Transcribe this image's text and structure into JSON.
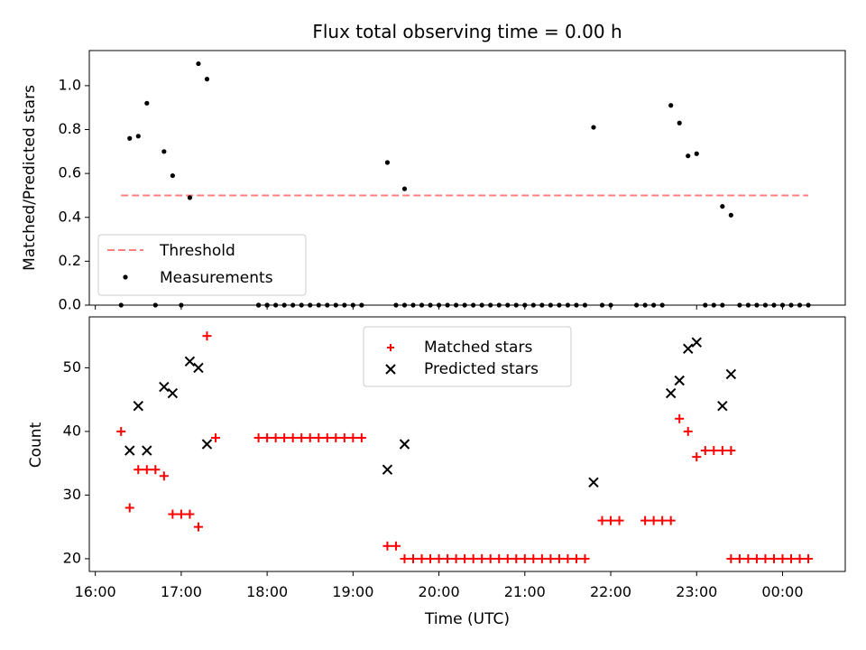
{
  "chart_data": [
    {
      "type": "scatter",
      "title": "Flux total observing time = 0.00 h",
      "ylabel": "Matched/Predicted stars",
      "ylim": [
        0,
        1.16
      ],
      "yticks": [
        "0.0",
        "0.2",
        "0.4",
        "0.6",
        "0.8",
        "1.0"
      ],
      "xlim_hours": [
        15.93,
        24.73
      ],
      "threshold": {
        "name": "Threshold",
        "value": 0.5,
        "x_start": "16:18",
        "x_end": "00:18",
        "color": "#ff7f7f"
      },
      "series": [
        {
          "name": "Measurements",
          "color": "#000000",
          "points": [
            [
              "16:18",
              0.0
            ],
            [
              "16:24",
              0.76
            ],
            [
              "16:30",
              0.77
            ],
            [
              "16:36",
              0.92
            ],
            [
              "16:42",
              0.0
            ],
            [
              "16:48",
              0.7
            ],
            [
              "16:54",
              0.59
            ],
            [
              "17:00",
              0.0
            ],
            [
              "17:06",
              0.49
            ],
            [
              "17:12",
              1.1
            ],
            [
              "17:18",
              1.03
            ],
            [
              "17:54",
              0.0
            ],
            [
              "18:00",
              0.0
            ],
            [
              "19:24",
              0.65
            ],
            [
              "19:36",
              0.53
            ],
            [
              "21:48",
              0.81
            ],
            [
              "22:42",
              0.91
            ],
            [
              "22:48",
              0.83
            ],
            [
              "22:54",
              0.68
            ],
            [
              "23:00",
              0.69
            ],
            [
              "23:18",
              0.45
            ],
            [
              "23:24",
              0.41
            ]
          ],
          "zero_runs": [
            [
              "17:54",
              "19:06"
            ],
            [
              "19:30",
              "21:42"
            ],
            [
              "21:54",
              "22:00"
            ],
            [
              "22:18",
              "22:36"
            ],
            [
              "23:06",
              "23:18"
            ],
            [
              "23:30",
              "00:18"
            ]
          ]
        }
      ],
      "legend": {
        "placement": "lower-left",
        "entries": [
          "Threshold",
          "Measurements"
        ]
      }
    },
    {
      "type": "scatter",
      "xlabel": "Time (UTC)",
      "ylabel": "Count",
      "ylim": [
        18,
        58
      ],
      "yticks": [
        "20",
        "30",
        "40",
        "50"
      ],
      "xticks": [
        "16:00",
        "17:00",
        "18:00",
        "19:00",
        "20:00",
        "21:00",
        "22:00",
        "23:00",
        "00:00"
      ],
      "series": [
        {
          "name": "Matched stars",
          "marker": "+",
          "color": "#ff0000",
          "points": [
            [
              "16:18",
              40
            ],
            [
              "16:24",
              28
            ],
            [
              "16:30",
              34
            ],
            [
              "16:36",
              34
            ],
            [
              "16:42",
              34
            ],
            [
              "16:48",
              33
            ],
            [
              "16:54",
              27
            ],
            [
              "17:00",
              27
            ],
            [
              "17:06",
              27
            ],
            [
              "17:12",
              25
            ],
            [
              "17:18",
              55
            ],
            [
              "17:24",
              39
            ],
            [
              "19:24",
              22
            ],
            [
              "19:30",
              22
            ],
            [
              "21:54",
              26
            ],
            [
              "22:00",
              26
            ],
            [
              "22:06",
              26
            ],
            [
              "22:24",
              26
            ],
            [
              "22:30",
              26
            ],
            [
              "22:36",
              26
            ],
            [
              "22:42",
              26
            ],
            [
              "22:48",
              42
            ],
            [
              "22:54",
              40
            ],
            [
              "23:00",
              36
            ],
            [
              "23:06",
              37
            ],
            [
              "23:12",
              37
            ],
            [
              "23:18",
              37
            ],
            [
              "23:24",
              37
            ]
          ],
          "runs": [
            {
              "from": "17:54",
              "to": "19:06",
              "value": 39
            },
            {
              "from": "19:36",
              "to": "21:42",
              "value": 20
            },
            {
              "from": "23:24",
              "to": "00:18",
              "value": 20
            }
          ]
        },
        {
          "name": "Predicted stars",
          "marker": "x",
          "color": "#000000",
          "points": [
            [
              "16:24",
              37
            ],
            [
              "16:30",
              44
            ],
            [
              "16:36",
              37
            ],
            [
              "16:48",
              47
            ],
            [
              "16:54",
              46
            ],
            [
              "17:06",
              51
            ],
            [
              "17:12",
              50
            ],
            [
              "17:18",
              38
            ],
            [
              "19:24",
              34
            ],
            [
              "19:36",
              38
            ],
            [
              "21:48",
              32
            ],
            [
              "22:42",
              46
            ],
            [
              "22:48",
              48
            ],
            [
              "22:54",
              53
            ],
            [
              "23:00",
              54
            ],
            [
              "23:18",
              44
            ],
            [
              "23:24",
              49
            ]
          ]
        }
      ],
      "legend": {
        "placement": "upper-center",
        "entries": [
          "Matched stars",
          "Predicted stars"
        ]
      }
    }
  ]
}
